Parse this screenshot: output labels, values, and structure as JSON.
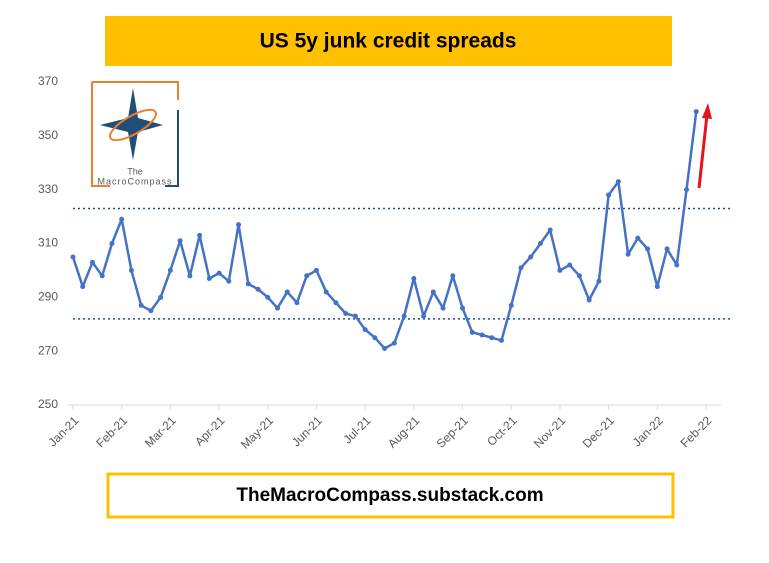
{
  "chart_data": {
    "type": "line",
    "title": "US 5y junk credit spreads",
    "footer": "TheMacroCompass.substack.com",
    "logo_text": [
      "The",
      "MacroCompass"
    ],
    "categories": [
      "Jan-21",
      null,
      null,
      null,
      null,
      "Feb-21",
      null,
      null,
      null,
      null,
      "Mar-21",
      null,
      null,
      null,
      null,
      "Apr-21",
      null,
      null,
      null,
      null,
      "May-21",
      null,
      null,
      null,
      null,
      "Jun-21",
      null,
      null,
      null,
      null,
      "Jul-21",
      null,
      null,
      null,
      null,
      "Aug-21",
      null,
      null,
      null,
      null,
      "Sep-21",
      null,
      null,
      null,
      null,
      "Oct-21",
      null,
      null,
      null,
      null,
      "Nov-21",
      null,
      null,
      null,
      null,
      "Dec-21",
      null,
      null,
      null,
      null,
      "Jan-22",
      null,
      null,
      null,
      null,
      "Feb-22"
    ],
    "series": [
      {
        "name": "US 5y junk credit spreads",
        "color": "#4472c4",
        "values": [
          305,
          294,
          303,
          298,
          310,
          319,
          300,
          287,
          285,
          290,
          300,
          311,
          298,
          313,
          297,
          299,
          296,
          317,
          295,
          293,
          290,
          286,
          292,
          288,
          298,
          300,
          292,
          288,
          284,
          283,
          278,
          275,
          271,
          273,
          283,
          297,
          283,
          292,
          286,
          298,
          286,
          277,
          276,
          275,
          274,
          287,
          301,
          305,
          310,
          315,
          300,
          302,
          298,
          289,
          296,
          328,
          333,
          306,
          312,
          308,
          294,
          308,
          302,
          330,
          359,
          null
        ]
      }
    ],
    "ylim": [
      250,
      370
    ],
    "yticks": [
      250,
      270,
      290,
      310,
      330,
      350,
      370
    ],
    "reference_lines": [
      323,
      282
    ],
    "reference_color": "#1f4e9c",
    "arrow_color": "#e8141b"
  }
}
